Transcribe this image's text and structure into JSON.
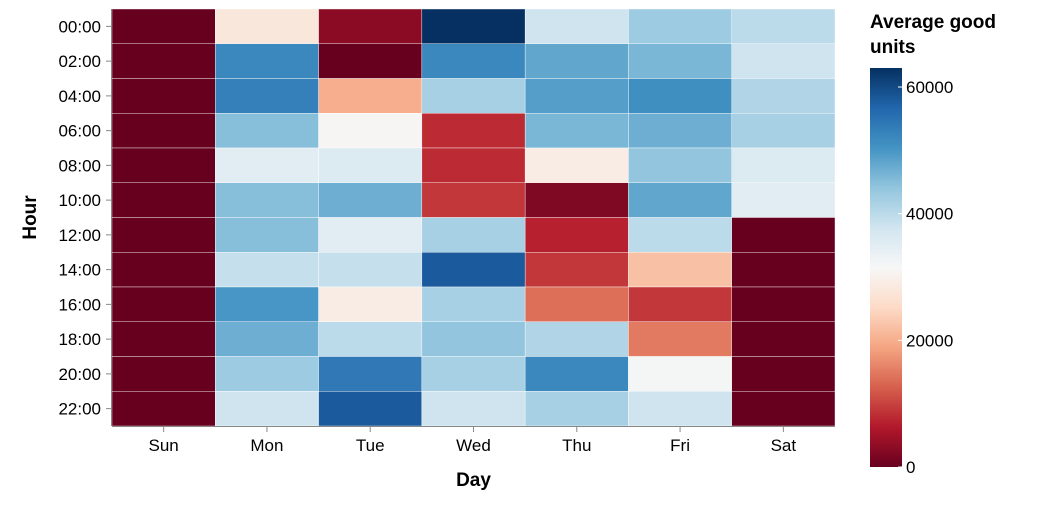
{
  "chart_data": {
    "type": "heatmap",
    "xlabel": "Day",
    "ylabel": "Hour",
    "x_categories": [
      "Sun",
      "Mon",
      "Tue",
      "Wed",
      "Thu",
      "Fri",
      "Sat"
    ],
    "y_categories": [
      "00:00",
      "02:00",
      "04:00",
      "06:00",
      "08:00",
      "10:00",
      "12:00",
      "14:00",
      "16:00",
      "18:00",
      "20:00",
      "22:00"
    ],
    "values": [
      [
        0,
        28000,
        3000,
        63000,
        38000,
        43000,
        40000
      ],
      [
        0,
        52000,
        0,
        52000,
        48000,
        46000,
        38000
      ],
      [
        0,
        53000,
        20000,
        42000,
        49000,
        51000,
        41000
      ],
      [
        0,
        45000,
        31000,
        8000,
        46000,
        47000,
        42000
      ],
      [
        0,
        35000,
        36000,
        8000,
        29000,
        44000,
        36000
      ],
      [
        0,
        45000,
        47000,
        9000,
        2000,
        48000,
        35000
      ],
      [
        0,
        45000,
        35000,
        42000,
        7000,
        40000,
        0
      ],
      [
        0,
        39000,
        39000,
        58000,
        9000,
        22000,
        0
      ],
      [
        0,
        50000,
        29000,
        42000,
        14000,
        9000,
        0
      ],
      [
        0,
        47000,
        40000,
        44000,
        41000,
        15000,
        0
      ],
      [
        0,
        43000,
        54000,
        42000,
        52000,
        32000,
        0
      ],
      [
        0,
        38000,
        58000,
        38000,
        42000,
        38000,
        0
      ]
    ],
    "color_scale": {
      "title_lines": [
        "Average good",
        "units"
      ],
      "domain": [
        0,
        63000
      ],
      "ticks": [
        0,
        20000,
        40000,
        60000
      ],
      "tick_labels": [
        "0",
        "20000",
        "40000",
        "60000"
      ],
      "colors": [
        "#67001f",
        "#b2182b",
        "#d6604d",
        "#f4a582",
        "#fddbc7",
        "#f7f7f7",
        "#d1e5f0",
        "#92c5de",
        "#4393c3",
        "#2166ac",
        "#053061"
      ]
    }
  }
}
